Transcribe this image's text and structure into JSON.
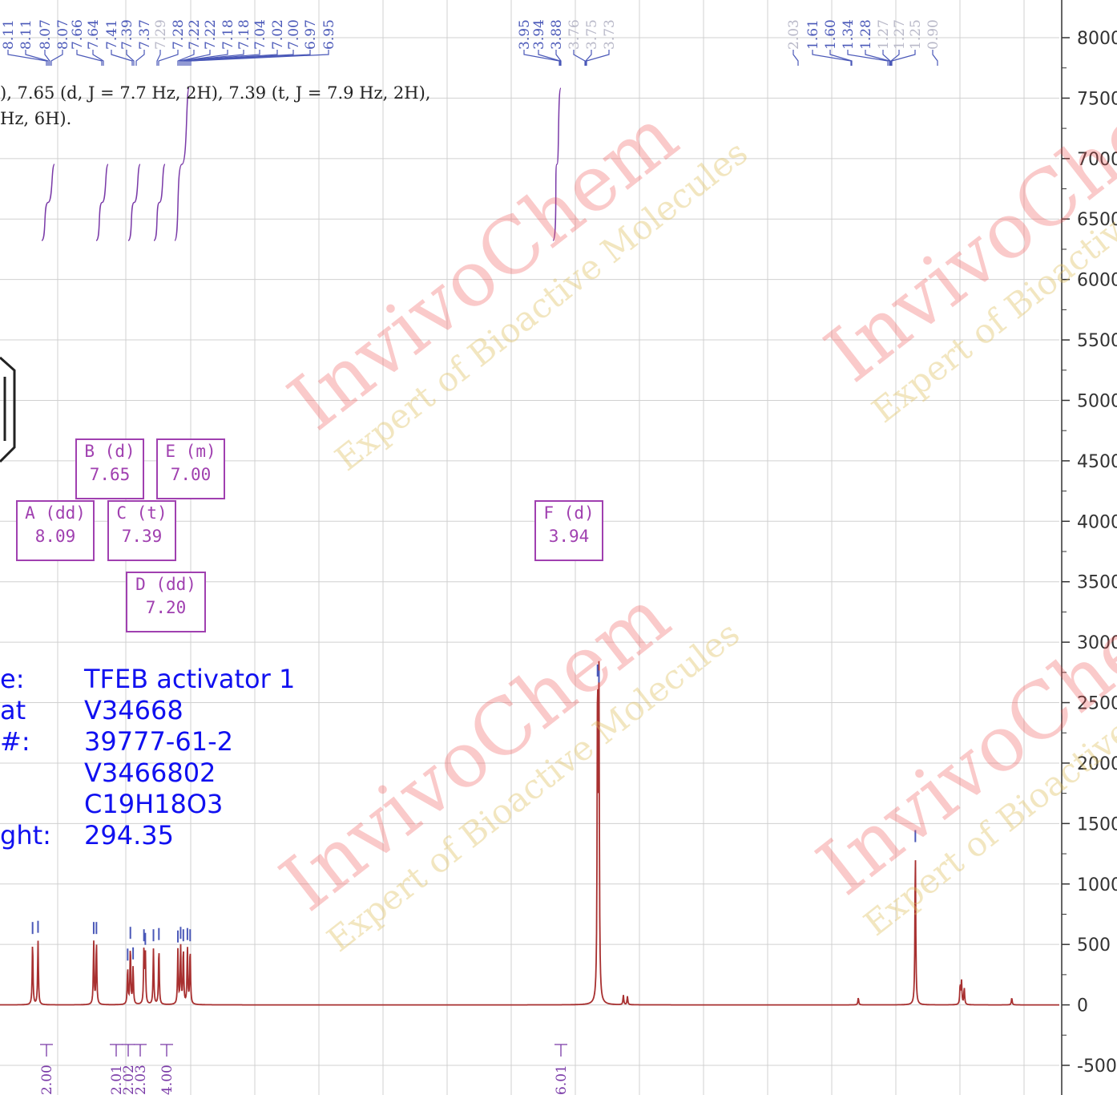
{
  "spectrum": {
    "x_axis_labels_bottom": [
      "2.00",
      "2.01",
      "2.02",
      "2.03",
      "4.00",
      "6.01"
    ],
    "peak_labels_top": [
      "8.11",
      "8.11",
      "8.07",
      "8.07",
      "7.66",
      "7.64",
      "7.41",
      "7.39",
      "7.37",
      "7.29",
      "7.28",
      "7.22",
      "7.22",
      "7.18",
      "7.18",
      "7.04",
      "7.02",
      "7.00",
      "6.97",
      "6.95",
      "3.95",
      "3.94",
      "3.88",
      "3.76",
      "3.75",
      "3.73",
      "2.03",
      "1.61",
      "1.60",
      "1.34",
      "1.28",
      "1.27",
      "1.27",
      "1.25",
      "0.90"
    ],
    "description_lines": [
      "), 7.65 (d, J = 7.7 Hz, 2H), 7.39 (t, J = 7.9 Hz, 2H),",
      "Hz, 6H)."
    ],
    "multiplet_boxes": [
      {
        "id": "A",
        "label": "A (dd)",
        "shift": "8.09"
      },
      {
        "id": "B",
        "label": "B (d)",
        "shift": "7.65"
      },
      {
        "id": "C",
        "label": "C (t)",
        "shift": "7.39"
      },
      {
        "id": "D",
        "label": "D (dd)",
        "shift": "7.20"
      },
      {
        "id": "E",
        "label": "E (m)",
        "shift": "7.00"
      },
      {
        "id": "F",
        "label": "F (d)",
        "shift": "3.94"
      }
    ],
    "colors": {
      "spectrum": "#a83030",
      "integral": "#7a3aa8",
      "peak_marker": "#4a58b8",
      "grid": "#d0d0d0",
      "box": "#a040b0",
      "info_text": "#1010f0"
    }
  },
  "compound_info": [
    {
      "key": "e:",
      "value": "TFEB activator 1"
    },
    {
      "key": "at #:",
      "value": "V34668"
    },
    {
      "key": "",
      "value": "39777-61-2"
    },
    {
      "key": "",
      "value": "V3466802"
    },
    {
      "key": "",
      "value": "C19H18O3"
    },
    {
      "key": "ght:",
      "value": "294.35"
    }
  ],
  "watermark": {
    "brand": "InvivoChem",
    "tagline": "Expert of Bioactive Molecules"
  },
  "chart_data": {
    "type": "line",
    "title": "",
    "xlabel": "",
    "ylabel": "",
    "xlim": [
      8.35,
      0.55
    ],
    "ylim": [
      -500,
      8000
    ],
    "y_ticks": [
      8000,
      7500,
      7000,
      6500,
      6000,
      5500,
      5000,
      4500,
      4000,
      3500,
      3000,
      2500,
      2000,
      1500,
      1000,
      500,
      0,
      -500
    ],
    "grid": true,
    "peaks_ppm_height": [
      [
        8.11,
        520
      ],
      [
        8.07,
        530
      ],
      [
        7.66,
        520
      ],
      [
        7.64,
        520
      ],
      [
        7.41,
        300
      ],
      [
        7.39,
        480
      ],
      [
        7.37,
        310
      ],
      [
        7.29,
        460
      ],
      [
        7.28,
        430
      ],
      [
        7.22,
        460
      ],
      [
        7.18,
        470
      ],
      [
        7.04,
        450
      ],
      [
        7.02,
        480
      ],
      [
        7.0,
        460
      ],
      [
        6.97,
        470
      ],
      [
        6.95,
        460
      ],
      [
        3.95,
        2650
      ],
      [
        3.94,
        2600
      ],
      [
        3.76,
        80
      ],
      [
        3.73,
        70
      ],
      [
        2.03,
        60
      ],
      [
        1.61,
        1280
      ],
      [
        1.28,
        160
      ],
      [
        1.27,
        190
      ],
      [
        1.25,
        140
      ],
      [
        0.9,
        60
      ]
    ],
    "integrals": [
      {
        "range": [
          8.13,
          8.05
        ],
        "value": "2.00"
      },
      {
        "range": [
          7.68,
          7.62
        ],
        "value": "2.01"
      },
      {
        "range": [
          7.43,
          7.35
        ],
        "value": "2.02"
      },
      {
        "range": [
          7.3,
          7.16
        ],
        "value": "2.03"
      },
      {
        "range": [
          7.06,
          6.93
        ],
        "value": "4.00"
      },
      {
        "range": [
          3.97,
          3.86
        ],
        "value": "6.01"
      }
    ]
  }
}
